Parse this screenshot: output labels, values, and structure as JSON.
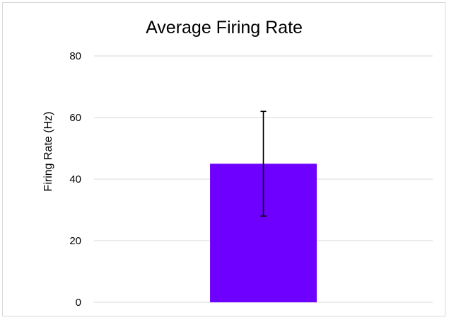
{
  "chart_data": {
    "type": "bar",
    "title": "Average Firing Rate",
    "xlabel": "",
    "ylabel": "Firing Rate (Hz)",
    "categories": [
      ""
    ],
    "values": [
      45
    ],
    "error": [
      17
    ],
    "ylim": [
      0,
      80
    ],
    "yticks": [
      0,
      20,
      40,
      60,
      80
    ],
    "grid": true,
    "legend": "none",
    "colors": {
      "bar": "#6e00ff",
      "grid": "#d9d9d9",
      "error_bar": "#000000"
    }
  }
}
